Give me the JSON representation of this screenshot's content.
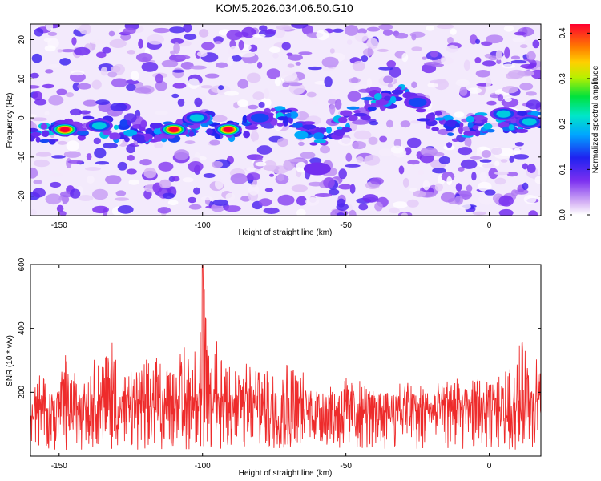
{
  "title": "KOM5.2026.034.06.50.G10",
  "colors": {
    "trace": "#ee2b2b",
    "frame": "#000000"
  },
  "chart_data": [
    {
      "type": "heatmap",
      "xlabel": "Height of straight line (km)",
      "ylabel": "Frequency (Hz)",
      "xlim": [
        -160,
        18
      ],
      "ylim": [
        -25,
        24
      ],
      "xticks": [
        -150,
        -100,
        -50,
        0
      ],
      "yticks": [
        -20,
        -10,
        0,
        10,
        20
      ],
      "colorbar": {
        "label": "Normalized spectral amplitude",
        "range": [
          0.0,
          0.42
        ],
        "ticks": [
          "0.0",
          "0.1",
          "0.2",
          "0.3",
          "0.4"
        ]
      },
      "ridge": [
        {
          "x": -160,
          "f": -5
        },
        {
          "x": -148,
          "f": -3
        },
        {
          "x": -135,
          "f": -2
        },
        {
          "x": -125,
          "f": -4
        },
        {
          "x": -110,
          "f": -3
        },
        {
          "x": -100,
          "f": -1
        },
        {
          "x": -91,
          "f": -3
        },
        {
          "x": -80,
          "f": -1
        },
        {
          "x": -70,
          "f": 1
        },
        {
          "x": -60,
          "f": -6
        },
        {
          "x": -40,
          "f": 4
        },
        {
          "x": -30,
          "f": 6
        },
        {
          "x": -18,
          "f": -1
        },
        {
          "x": -10,
          "f": -3
        },
        {
          "x": 0,
          "f": -1
        },
        {
          "x": 15,
          "f": -1
        }
      ],
      "peaks": [
        {
          "x": -148,
          "f": -3,
          "amp": 0.42
        },
        {
          "x": -110,
          "f": -3,
          "amp": 0.42
        },
        {
          "x": -91,
          "f": -3,
          "amp": 0.42
        },
        {
          "x": -136,
          "f": -2,
          "amp": 0.2
        },
        {
          "x": -102,
          "f": 0,
          "amp": 0.2
        },
        {
          "x": -80,
          "f": 0,
          "amp": 0.17
        },
        {
          "x": 5,
          "f": 1,
          "amp": 0.2
        },
        {
          "x": 14,
          "f": -1,
          "amp": 0.22
        },
        {
          "x": -25,
          "f": 4,
          "amp": 0.15
        },
        {
          "x": -60,
          "f": -13,
          "amp": 0.12
        }
      ]
    },
    {
      "type": "line",
      "xlabel": "Height of straight line (km)",
      "ylabel": "SNR (10 * v/v)",
      "xlim": [
        -160,
        18
      ],
      "ylim": [
        0,
        600
      ],
      "xticks": [
        -150,
        -100,
        -50,
        0
      ],
      "yticks": [
        200,
        400,
        600
      ],
      "series": [
        {
          "name": "SNR",
          "color": "#ee2b2b",
          "points": [
            {
              "x": -160,
              "y": 120
            },
            {
              "x": -158,
              "y": 260
            },
            {
              "x": -155,
              "y": 250
            },
            {
              "x": -151,
              "y": 200
            },
            {
              "x": -148,
              "y": 340
            },
            {
              "x": -145,
              "y": 270
            },
            {
              "x": -141,
              "y": 300
            },
            {
              "x": -136,
              "y": 340
            },
            {
              "x": -132,
              "y": 380
            },
            {
              "x": -127,
              "y": 250
            },
            {
              "x": -120,
              "y": 300
            },
            {
              "x": -115,
              "y": 340
            },
            {
              "x": -110,
              "y": 330
            },
            {
              "x": -105,
              "y": 350
            },
            {
              "x": -102,
              "y": 400
            },
            {
              "x": -101,
              "y": 500
            },
            {
              "x": -100,
              "y": 600
            },
            {
              "x": -99,
              "y": 480
            },
            {
              "x": -96,
              "y": 440
            },
            {
              "x": -93,
              "y": 380
            },
            {
              "x": -88,
              "y": 300
            },
            {
              "x": -80,
              "y": 280
            },
            {
              "x": -70,
              "y": 300
            },
            {
              "x": -60,
              "y": 230
            },
            {
              "x": -50,
              "y": 260
            },
            {
              "x": -40,
              "y": 210
            },
            {
              "x": -30,
              "y": 240
            },
            {
              "x": -20,
              "y": 220
            },
            {
              "x": -10,
              "y": 260
            },
            {
              "x": 0,
              "y": 230
            },
            {
              "x": 8,
              "y": 300
            },
            {
              "x": 12,
              "y": 380
            },
            {
              "x": 16,
              "y": 330
            }
          ],
          "baseline": 110,
          "noise": 90
        }
      ]
    }
  ]
}
